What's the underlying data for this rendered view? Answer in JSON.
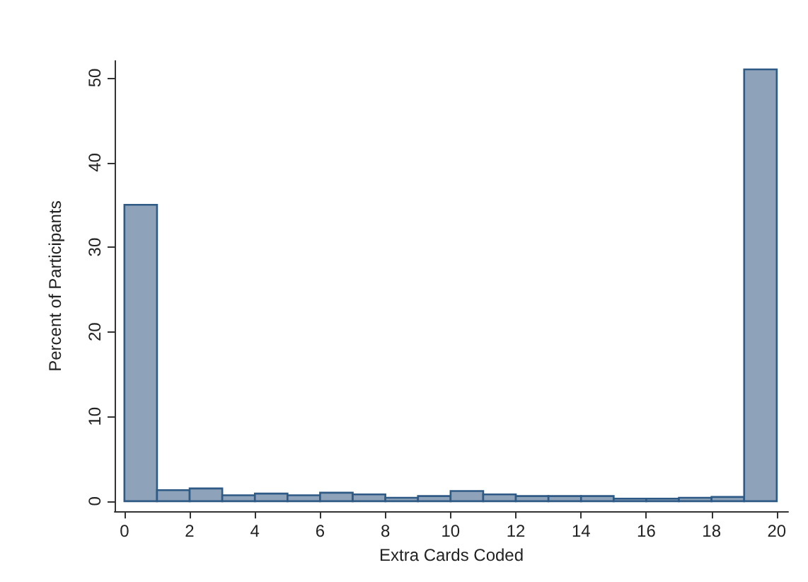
{
  "chart_data": {
    "type": "histogram",
    "xlabel": "Extra Cards Coded",
    "ylabel": "Percent of Participants",
    "bins": [
      0,
      1,
      2,
      3,
      4,
      5,
      6,
      7,
      8,
      9,
      10,
      11,
      12,
      13,
      14,
      15,
      16,
      17,
      18,
      19,
      20
    ],
    "values": [
      35,
      1.3,
      1.5,
      0.7,
      0.9,
      0.7,
      1.0,
      0.8,
      0.4,
      0.6,
      1.2,
      0.8,
      0.6,
      0.6,
      0.6,
      0.3,
      0.3,
      0.4,
      0.5,
      51
    ],
    "color": "#8ea3b9",
    "xlim": [
      -0.3,
      20.35
    ],
    "xticks": [
      0,
      2,
      4,
      6,
      8,
      10,
      12,
      14,
      16,
      18,
      20
    ],
    "ylim": [
      -1.2,
      52
    ],
    "yticks": [
      0,
      10,
      20,
      30,
      40,
      50
    ],
    "grid": false
  }
}
